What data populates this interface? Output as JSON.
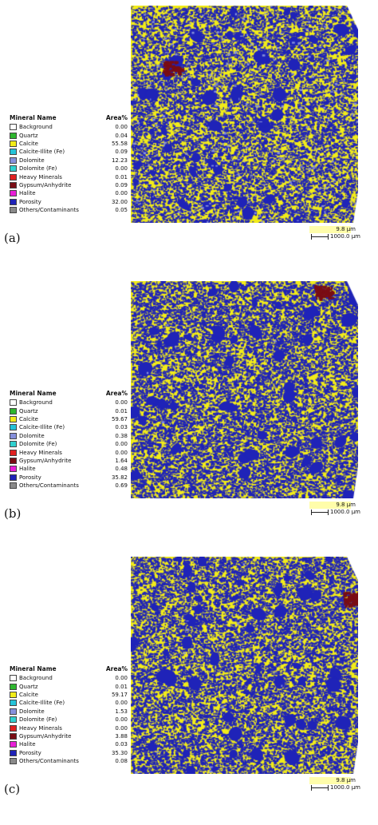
{
  "colors": {
    "Background": "#ffffff",
    "Quartz": "#2eb62e",
    "Calcite": "#f2ec19",
    "Calcite-Illite (Fe)": "#25c3d8",
    "Dolomite": "#8690dc",
    "Dolomite (Fe)": "#2fd0cf",
    "Heavy Minerals": "#e02020",
    "Gypsum/Anhydrite": "#7a0d14",
    "Halite": "#e81fd7",
    "Porosity": "#1f23b8",
    "Others/Contaminants": "#8a8a8a"
  },
  "panels": [
    {
      "caption": "(a)",
      "legend": {
        "header_name": "Mineral Name",
        "header_value": "Area%",
        "rows": [
          {
            "name": "Background",
            "value": "0.00"
          },
          {
            "name": "Quartz",
            "value": "0.04"
          },
          {
            "name": "Calcite",
            "value": "55.58"
          },
          {
            "name": "Calcite-Illite (Fe)",
            "value": "0.09"
          },
          {
            "name": "Dolomite",
            "value": "12.23"
          },
          {
            "name": "Dolomite (Fe)",
            "value": "0.00"
          },
          {
            "name": "Heavy Minerals",
            "value": "0.01"
          },
          {
            "name": "Gypsum/Anhydrite",
            "value": "0.09"
          },
          {
            "name": "Halite",
            "value": "0.00"
          },
          {
            "name": "Porosity",
            "value": "32.00"
          },
          {
            "name": "Others/Contaminants",
            "value": "0.05"
          }
        ]
      },
      "scale": {
        "pixel": "9.8 µm",
        "length": "1000.0 µm"
      }
    },
    {
      "caption": "(b)",
      "legend": {
        "header_name": "Mineral Name",
        "header_value": "Area%",
        "rows": [
          {
            "name": "Background",
            "value": "0.00"
          },
          {
            "name": "Quartz",
            "value": "0.01"
          },
          {
            "name": "Calcite",
            "value": "59.67"
          },
          {
            "name": "Calcite-Illite (Fe)",
            "value": "0.03"
          },
          {
            "name": "Dolomite",
            "value": "0.38"
          },
          {
            "name": "Dolomite (Fe)",
            "value": "0.00"
          },
          {
            "name": "Heavy Minerals",
            "value": "0.00"
          },
          {
            "name": "Gypsum/Anhydrite",
            "value": "1.64"
          },
          {
            "name": "Halite",
            "value": "0.48"
          },
          {
            "name": "Porosity",
            "value": "35.82"
          },
          {
            "name": "Others/Contaminants",
            "value": "0.69"
          }
        ]
      },
      "scale": {
        "pixel": "9.8 µm",
        "length": "1000.0 µm"
      }
    },
    {
      "caption": "(c)",
      "legend": {
        "header_name": "Mineral Name",
        "header_value": "Area%",
        "rows": [
          {
            "name": "Background",
            "value": "0.00"
          },
          {
            "name": "Quartz",
            "value": "0.01"
          },
          {
            "name": "Calcite",
            "value": "59.17"
          },
          {
            "name": "Calcite-Illite (Fe)",
            "value": "0.00"
          },
          {
            "name": "Dolomite",
            "value": "1.53"
          },
          {
            "name": "Dolomite (Fe)",
            "value": "0.00"
          },
          {
            "name": "Heavy Minerals",
            "value": "0.00"
          },
          {
            "name": "Gypsum/Anhydrite",
            "value": "3.88"
          },
          {
            "name": "Halite",
            "value": "0.03"
          },
          {
            "name": "Porosity",
            "value": "35.30"
          },
          {
            "name": "Others/Contaminants",
            "value": "0.08"
          }
        ]
      },
      "scale": {
        "pixel": "9.8 µm",
        "length": "1000.0 µm"
      }
    }
  ]
}
